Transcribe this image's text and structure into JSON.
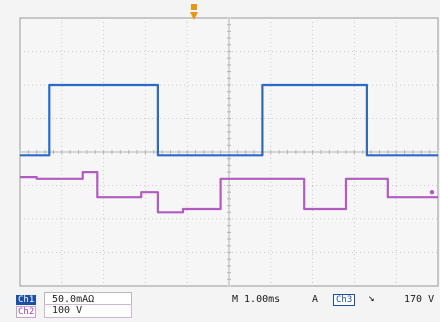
{
  "chart_data": {
    "type": "line",
    "title": "",
    "xlabel": "",
    "ylabel": "",
    "grid": true,
    "divisions": {
      "x": 10,
      "y": 8
    },
    "x_unit": "div",
    "xlim": [
      0,
      10
    ],
    "ylim": [
      -4,
      4
    ],
    "series": [
      {
        "channel": "Ch1",
        "color": "#2a6bc9",
        "x": [
          0,
          0.7,
          0.7,
          3.3,
          3.3,
          5.8,
          5.8,
          8.3,
          8.3,
          10
        ],
        "y": [
          -0.1,
          -0.1,
          2.0,
          2.0,
          -0.1,
          -0.1,
          2.0,
          2.0,
          -0.1,
          -0.1
        ]
      },
      {
        "channel": "Ch2",
        "color": "#b25bc0",
        "x": [
          0,
          0.4,
          0.4,
          1.5,
          1.5,
          1.85,
          1.85,
          2.9,
          2.9,
          3.3,
          3.3,
          3.9,
          3.9,
          4.8,
          4.8,
          5.05,
          5.05,
          6.8,
          6.8,
          7.8,
          7.8,
          7.85,
          7.85,
          8.8,
          8.8,
          10
        ],
        "y": [
          -0.75,
          -0.75,
          -0.8,
          -0.8,
          -0.6,
          -0.6,
          -1.35,
          -1.35,
          -1.2,
          -1.2,
          -1.8,
          -1.8,
          -1.7,
          -1.7,
          -0.8,
          -0.8,
          -0.8,
          -0.8,
          -1.7,
          -1.7,
          -0.8,
          -0.8,
          -0.8,
          -0.8,
          -1.35,
          -1.35
        ]
      }
    ],
    "trigger_marker": "T"
  },
  "readouts": {
    "ch1_label": "Ch1",
    "ch1_scale": "50.0mAΩ",
    "ch2_label": "Ch2",
    "ch2_scale": "100 V",
    "timebase": "M 1.00ms",
    "trigger_mode": "A",
    "trigger_source": "Ch3",
    "trigger_slope": "↘",
    "trigger_level": "170 V"
  },
  "colors": {
    "grid": "#c9c9c9",
    "graticule_bg": "#f6f6f6",
    "ch1": "#2a6bc9",
    "ch2": "#b25bc0",
    "trigger": "#e8951c"
  }
}
